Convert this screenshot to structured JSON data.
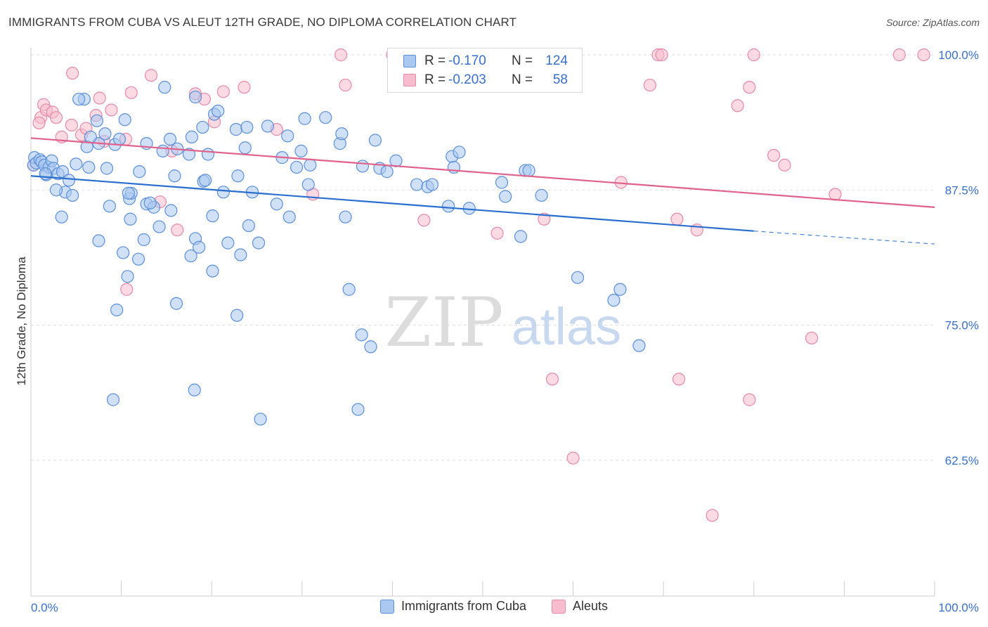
{
  "header": {
    "title": "IMMIGRANTS FROM CUBA VS ALEUT 12TH GRADE, NO DIPLOMA CORRELATION CHART",
    "source": "Source: ZipAtlas.com"
  },
  "watermark": {
    "zip": "ZIP",
    "atlas": "atlas"
  },
  "legend": {
    "rows": [
      {
        "r_label": "R =",
        "r_value": "-0.170",
        "n_label": "N =",
        "n_value": "124"
      },
      {
        "r_label": "R =",
        "r_value": "-0.203",
        "n_label": "N =",
        "n_value": "58"
      }
    ]
  },
  "bottom_legend": {
    "items": [
      {
        "label": "Immigrants from Cuba"
      },
      {
        "label": "Aleuts"
      }
    ]
  },
  "colors": {
    "blue_fill": "#aac8f0",
    "blue_stroke": "#5b8fd8",
    "blue_line": "#2a6fcf",
    "pink_fill": "#f7bccd",
    "pink_stroke": "#e58aa7",
    "pink_line": "#e0628c",
    "grid": "#dddddd",
    "axis_text": "#3a6fc8"
  },
  "chart_data": {
    "type": "scatter",
    "title": "IMMIGRANTS FROM CUBA VS ALEUT 12TH GRADE, NO DIPLOMA CORRELATION CHART",
    "xlabel": "",
    "ylabel": "12th Grade, No Diploma",
    "xlim": [
      0,
      100
    ],
    "ylim": [
      50,
      100
    ],
    "x_tick_labels": [
      "0.0%",
      "100.0%"
    ],
    "y_ticks": [
      62.5,
      75.0,
      87.5,
      100.0
    ],
    "y_tick_labels": [
      "62.5%",
      "75.0%",
      "87.5%",
      "100.0%"
    ],
    "grid": true,
    "series": [
      {
        "name": "Immigrants from Cuba",
        "trend": {
          "x0": 0,
          "y0": 88.8,
          "x1": 80,
          "y1": 83.7,
          "dashed_to_x": 100,
          "dashed_y1": 82.5
        },
        "points": [
          [
            0.3,
            89.8
          ],
          [
            0.4,
            90.5
          ],
          [
            0.6,
            90.0
          ],
          [
            1.0,
            90.3
          ],
          [
            1.2,
            90.1
          ],
          [
            1.5,
            89.8
          ],
          [
            1.7,
            88.9
          ],
          [
            2.0,
            89.6
          ],
          [
            2.3,
            90.2
          ],
          [
            2.5,
            89.5
          ],
          [
            3.0,
            89.0
          ],
          [
            3.5,
            89.2
          ],
          [
            3.8,
            87.3
          ],
          [
            4.2,
            88.4
          ],
          [
            4.6,
            87.0
          ],
          [
            5.0,
            89.9
          ],
          [
            3.4,
            85.0
          ],
          [
            6.2,
            91.5
          ],
          [
            7.3,
            93.9
          ],
          [
            7.5,
            91.8
          ],
          [
            6.6,
            92.4
          ],
          [
            6.4,
            89.6
          ],
          [
            5.9,
            95.9
          ],
          [
            8.2,
            92.7
          ],
          [
            8.4,
            89.5
          ],
          [
            8.7,
            86.0
          ],
          [
            9.3,
            91.7
          ],
          [
            9.8,
            92.2
          ],
          [
            10.4,
            94.0
          ],
          [
            11.0,
            84.8
          ],
          [
            10.9,
            86.7
          ],
          [
            11.1,
            87.2
          ],
          [
            7.5,
            82.8
          ],
          [
            10.2,
            81.7
          ],
          [
            11.9,
            81.1
          ],
          [
            10.7,
            79.5
          ],
          [
            12.5,
            82.9
          ],
          [
            12.8,
            86.2
          ],
          [
            13.6,
            85.9
          ],
          [
            14.2,
            84.1
          ],
          [
            12.8,
            91.8
          ],
          [
            12.0,
            89.2
          ],
          [
            14.6,
            91.1
          ],
          [
            15.4,
            92.2
          ],
          [
            15.9,
            88.8
          ],
          [
            16.2,
            91.3
          ],
          [
            17.5,
            90.8
          ],
          [
            18.2,
            96.1
          ],
          [
            19.0,
            93.3
          ],
          [
            19.1,
            88.3
          ],
          [
            19.6,
            90.8
          ],
          [
            19.3,
            88.4
          ],
          [
            20.3,
            94.5
          ],
          [
            20.7,
            94.8
          ],
          [
            21.3,
            87.3
          ],
          [
            21.8,
            82.6
          ],
          [
            22.7,
            93.1
          ],
          [
            22.9,
            88.8
          ],
          [
            23.7,
            91.4
          ],
          [
            23.9,
            93.3
          ],
          [
            24.1,
            84.2
          ],
          [
            24.5,
            87.3
          ],
          [
            25.2,
            82.6
          ],
          [
            26.2,
            93.4
          ],
          [
            27.2,
            86.2
          ],
          [
            27.8,
            90.5
          ],
          [
            28.4,
            92.5
          ],
          [
            28.6,
            85.0
          ],
          [
            29.4,
            89.6
          ],
          [
            29.9,
            91.1
          ],
          [
            30.3,
            94.1
          ],
          [
            30.9,
            89.8
          ],
          [
            30.7,
            88.0
          ],
          [
            32.6,
            94.2
          ],
          [
            34.2,
            91.8
          ],
          [
            34.4,
            92.7
          ],
          [
            34.8,
            85.0
          ],
          [
            36.7,
            89.7
          ],
          [
            38.1,
            92.1
          ],
          [
            38.6,
            89.5
          ],
          [
            39.4,
            89.2
          ],
          [
            40.4,
            90.2
          ],
          [
            42.7,
            88.0
          ],
          [
            43.9,
            87.8
          ],
          [
            44.4,
            88.0
          ],
          [
            46.2,
            86.0
          ],
          [
            46.6,
            90.6
          ],
          [
            46.8,
            89.6
          ],
          [
            47.4,
            91.0
          ],
          [
            48.5,
            85.8
          ],
          [
            52.1,
            88.2
          ],
          [
            52.5,
            86.9
          ],
          [
            54.2,
            83.2
          ],
          [
            54.7,
            89.3
          ],
          [
            16.1,
            77.0
          ],
          [
            18.2,
            83.0
          ],
          [
            18.6,
            82.2
          ],
          [
            17.7,
            81.4
          ],
          [
            20.1,
            80.0
          ],
          [
            22.8,
            75.9
          ],
          [
            25.4,
            66.3
          ],
          [
            35.2,
            78.3
          ],
          [
            36.6,
            74.1
          ],
          [
            37.6,
            73.0
          ],
          [
            36.2,
            67.2
          ],
          [
            9.5,
            76.4
          ],
          [
            9.1,
            68.1
          ],
          [
            18.1,
            69.0
          ],
          [
            60.5,
            79.4
          ],
          [
            64.5,
            77.3
          ],
          [
            65.2,
            78.3
          ],
          [
            67.3,
            73.1
          ],
          [
            56.5,
            87.0
          ],
          [
            55.1,
            89.3
          ],
          [
            14.8,
            97.0
          ],
          [
            5.3,
            95.9
          ],
          [
            17.8,
            92.4
          ],
          [
            20.1,
            85.1
          ],
          [
            15.5,
            85.6
          ],
          [
            10.8,
            87.2
          ],
          [
            1.6,
            89.0
          ],
          [
            2.8,
            87.5
          ],
          [
            13.2,
            86.3
          ],
          [
            23.2,
            81.5
          ]
        ]
      },
      {
        "name": "Aleuts",
        "trend": {
          "x0": 0,
          "y0": 92.3,
          "x1": 100,
          "y1": 85.9
        },
        "points": [
          [
            0.3,
            89.8
          ],
          [
            1.1,
            94.2
          ],
          [
            1.4,
            95.4
          ],
          [
            1.7,
            94.9
          ],
          [
            0.9,
            93.7
          ],
          [
            2.4,
            94.7
          ],
          [
            2.8,
            94.2
          ],
          [
            3.4,
            92.4
          ],
          [
            4.5,
            93.5
          ],
          [
            4.6,
            98.3
          ],
          [
            5.6,
            92.6
          ],
          [
            6.1,
            93.2
          ],
          [
            7.2,
            94.4
          ],
          [
            7.6,
            96.0
          ],
          [
            8.1,
            92.0
          ],
          [
            8.9,
            94.9
          ],
          [
            10.5,
            92.2
          ],
          [
            11.1,
            96.5
          ],
          [
            13.3,
            98.1
          ],
          [
            14.3,
            86.4
          ],
          [
            15.6,
            91.1
          ],
          [
            16.2,
            83.8
          ],
          [
            18.2,
            96.4
          ],
          [
            19.2,
            95.9
          ],
          [
            20.3,
            93.8
          ],
          [
            21.3,
            96.6
          ],
          [
            23.6,
            97.0
          ],
          [
            27.2,
            93.1
          ],
          [
            31.2,
            87.1
          ],
          [
            34.3,
            100.0
          ],
          [
            34.8,
            97.2
          ],
          [
            40.0,
            100.0
          ],
          [
            43.5,
            84.7
          ],
          [
            48.3,
            100.0
          ],
          [
            51.6,
            83.5
          ],
          [
            56.2,
            100.0
          ],
          [
            56.8,
            84.8
          ],
          [
            57.7,
            70.0
          ],
          [
            60.0,
            62.7
          ],
          [
            65.3,
            88.2
          ],
          [
            68.5,
            97.2
          ],
          [
            69.4,
            100.0
          ],
          [
            69.8,
            100.0
          ],
          [
            71.5,
            84.8
          ],
          [
            71.7,
            70.0
          ],
          [
            73.7,
            83.8
          ],
          [
            75.4,
            57.4
          ],
          [
            78.2,
            95.3
          ],
          [
            79.5,
            97.0
          ],
          [
            79.5,
            68.1
          ],
          [
            80.0,
            100.0
          ],
          [
            82.2,
            90.7
          ],
          [
            83.4,
            89.8
          ],
          [
            86.4,
            73.8
          ],
          [
            89.0,
            87.1
          ],
          [
            96.1,
            100.0
          ],
          [
            98.8,
            100.0
          ],
          [
            10.6,
            78.3
          ]
        ]
      }
    ]
  }
}
